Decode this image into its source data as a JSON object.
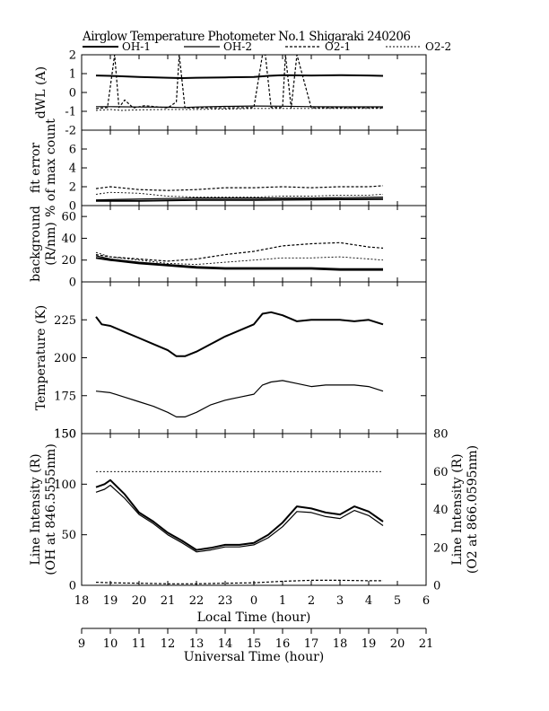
{
  "chart_data": {
    "type": "line",
    "title": "Airglow Temperature Photometer No.1  Shigaraki  240206",
    "legend": [
      "OH-1",
      "OH-2",
      "O2-1",
      "O2-2"
    ],
    "legend_placement": "top",
    "x_local": {
      "label": "Local Time (hour)",
      "ticks": [
        "18",
        "19",
        "20",
        "21",
        "22",
        "23",
        "0",
        "1",
        "2",
        "3",
        "4",
        "5",
        "6"
      ]
    },
    "x_universal": {
      "label": "Universal Time (hour)",
      "ticks": [
        "9",
        "10",
        "11",
        "12",
        "13",
        "14",
        "15",
        "16",
        "17",
        "18",
        "19",
        "20",
        "21"
      ]
    },
    "x_range_ut": [
      9,
      21
    ],
    "panels": [
      {
        "id": "dwl",
        "ylabel": [
          "dWL (A)"
        ],
        "ylim": [
          -2,
          2
        ],
        "yticks": [
          "-2",
          "-1",
          "0",
          "1",
          "2"
        ],
        "series": [
          {
            "name": "OH-1",
            "x": [
              9.5,
              10,
              11,
              12,
              12.5,
              13,
              14,
              15,
              15.5,
              16,
              17,
              18,
              19,
              19.5
            ],
            "y": [
              0.9,
              0.88,
              0.82,
              0.78,
              0.76,
              0.78,
              0.8,
              0.82,
              0.88,
              0.92,
              0.9,
              0.92,
              0.9,
              0.88
            ]
          },
          {
            "name": "OH-2",
            "x": [
              9.5,
              10,
              11,
              12,
              12.5,
              13,
              14,
              15,
              16,
              17,
              18,
              19,
              19.5
            ],
            "y": [
              -0.75,
              -0.75,
              -0.77,
              -0.78,
              -0.8,
              -0.77,
              -0.74,
              -0.72,
              -0.73,
              -0.75,
              -0.76,
              -0.76,
              -0.76
            ]
          },
          {
            "name": "O2-1",
            "x": [
              9.5,
              9.9,
              10.15,
              10.3,
              10.5,
              10.8,
              11.2,
              12,
              12.3,
              12.4,
              12.6,
              13,
              14,
              15,
              15.3,
              15.4,
              15.6,
              16,
              16.1,
              16.3,
              16.5,
              17,
              18,
              19,
              19.5
            ],
            "y": [
              -0.85,
              -0.8,
              2.0,
              -0.8,
              -0.4,
              -0.82,
              -0.7,
              -0.82,
              -0.5,
              2.0,
              -0.82,
              -0.82,
              -0.82,
              -0.8,
              2.0,
              2.0,
              -0.8,
              -0.8,
              2.0,
              -0.82,
              2.0,
              -0.82,
              -0.82,
              -0.82,
              -0.82
            ]
          },
          {
            "name": "O2-2",
            "x": [
              9.5,
              10,
              10.4,
              11,
              12,
              13,
              14,
              15,
              16,
              17,
              18,
              19,
              19.5
            ],
            "y": [
              -0.95,
              -0.9,
              -0.95,
              -0.92,
              -0.9,
              -0.9,
              -0.88,
              -0.85,
              -0.85,
              -0.85,
              -0.85,
              -0.85,
              -0.85
            ]
          }
        ]
      },
      {
        "id": "fit",
        "ylabel": [
          "fit error",
          "% of max count"
        ],
        "ylim": [
          0,
          8
        ],
        "yticks": [
          "0",
          "2",
          "4",
          "6"
        ],
        "series": [
          {
            "name": "OH-1",
            "x": [
              9.5,
              11,
              13,
              15,
              17,
              19.5
            ],
            "y": [
              0.5,
              0.5,
              0.6,
              0.6,
              0.65,
              0.7
            ]
          },
          {
            "name": "OH-2",
            "x": [
              9.5,
              11,
              13,
              15,
              17,
              19.5
            ],
            "y": [
              0.6,
              0.7,
              0.8,
              0.8,
              0.8,
              0.9
            ]
          },
          {
            "name": "O2-1",
            "x": [
              9.5,
              10,
              11,
              12,
              13,
              14,
              15,
              16,
              17,
              18,
              19,
              19.5
            ],
            "y": [
              1.8,
              2.0,
              1.7,
              1.6,
              1.7,
              1.9,
              1.9,
              2.0,
              1.9,
              2.0,
              2.0,
              2.1
            ]
          },
          {
            "name": "O2-2",
            "x": [
              9.5,
              10,
              11,
              12,
              13,
              14,
              15,
              16,
              17,
              18,
              19,
              19.5
            ],
            "y": [
              1.2,
              1.4,
              1.3,
              1.0,
              0.9,
              0.9,
              0.9,
              1.0,
              1.0,
              1.1,
              1.1,
              1.2
            ]
          }
        ]
      },
      {
        "id": "background",
        "ylabel": [
          "background",
          "(R/nm)"
        ],
        "ylim": [
          0,
          70
        ],
        "yticks": [
          "0",
          "20",
          "40",
          "60"
        ],
        "series": [
          {
            "name": "OH-1",
            "x": [
              9.5,
              10,
              11,
              12,
              13,
              14,
              15,
              16,
              17,
              18,
              19,
              19.5
            ],
            "y": [
              22,
              20,
              17,
              15,
              13,
              12,
              12,
              12,
              12,
              11,
              11,
              11
            ]
          },
          {
            "name": "OH-2",
            "x": [
              9.5,
              10,
              11,
              12,
              13,
              14,
              15,
              16,
              17,
              18,
              19,
              19.5
            ],
            "y": [
              24,
              21,
              18,
              16,
              14,
              13,
              13,
              13,
              13,
              12,
              12,
              12
            ]
          },
          {
            "name": "O2-1",
            "x": [
              9.5,
              10,
              11,
              12,
              13,
              14,
              15,
              16,
              17,
              18,
              19,
              19.5
            ],
            "y": [
              25,
              23,
              21,
              19,
              21,
              25,
              28,
              33,
              35,
              36,
              32,
              31
            ]
          },
          {
            "name": "O2-2",
            "x": [
              9.5,
              10,
              11,
              12,
              13,
              14,
              15,
              16,
              17,
              18,
              19,
              19.5
            ],
            "y": [
              27,
              23,
              20,
              17,
              16,
              18,
              20,
              22,
              22,
              23,
              21,
              20
            ]
          }
        ]
      },
      {
        "id": "temperature",
        "ylabel": [
          "Temperature (K)"
        ],
        "ylim": [
          150,
          250
        ],
        "yticks": [
          "150",
          "175",
          "200",
          "225"
        ],
        "series": [
          {
            "name": "OH-1",
            "x": [
              9.5,
              9.7,
              10,
              10.5,
              11,
              11.5,
              12,
              12.3,
              12.6,
              13,
              13.5,
              14,
              14.5,
              15,
              15.3,
              15.6,
              16,
              16.5,
              17,
              17.5,
              18,
              18.5,
              19,
              19.5
            ],
            "y": [
              227,
              222,
              221,
              217,
              213,
              209,
              205,
              201,
              201,
              204,
              209,
              214,
              218,
              222,
              229,
              230,
              228,
              224,
              225,
              225,
              225,
              224,
              225,
              222
            ]
          },
          {
            "name": "OH-2",
            "x": [
              9.5,
              10,
              10.5,
              11,
              11.5,
              12,
              12.3,
              12.6,
              13,
              13.5,
              14,
              14.5,
              15,
              15.3,
              15.6,
              16,
              16.5,
              17,
              17.5,
              18,
              18.5,
              19,
              19.5
            ],
            "y": [
              178,
              177,
              174,
              171,
              168,
              164,
              161,
              161,
              164,
              169,
              172,
              174,
              176,
              182,
              184,
              185,
              183,
              181,
              182,
              182,
              182,
              181,
              178
            ]
          }
        ]
      },
      {
        "id": "intensity",
        "ylabel": [
          "Line Intensity (R)",
          "(OH at 846.5555nm)"
        ],
        "ylabel_right": [
          "Line Intensity (R)",
          "(O2 at 866.0595nm)"
        ],
        "ylim": [
          0,
          150
        ],
        "ylim_right": [
          0,
          80
        ],
        "yticks": [
          "0",
          "50",
          "100",
          "150"
        ],
        "yticks_right": [
          "0",
          "20",
          "40",
          "60",
          "80"
        ],
        "series": [
          {
            "name": "OH-1",
            "x": [
              9.5,
              9.8,
              10,
              10.5,
              11,
              11.5,
              12,
              12.5,
              13,
              13.5,
              14,
              14.5,
              15,
              15.5,
              16,
              16.5,
              17,
              17.5,
              18,
              18.5,
              19,
              19.5
            ],
            "y": [
              97,
              100,
              104,
              90,
              72,
              63,
              52,
              44,
              35,
              37,
              40,
              40,
              42,
              50,
              62,
              78,
              76,
              72,
              70,
              78,
              73,
              63
            ]
          },
          {
            "name": "OH-2",
            "x": [
              9.5,
              9.8,
              10,
              10.5,
              11,
              11.5,
              12,
              12.5,
              13,
              13.5,
              14,
              14.5,
              15,
              15.5,
              16,
              16.5,
              17,
              17.5,
              18,
              18.5,
              19,
              19.5
            ],
            "y": [
              92,
              95,
              99,
              86,
              70,
              61,
              50,
              42,
              33,
              35,
              38,
              38,
              40,
              47,
              58,
              73,
              72,
              68,
              66,
              74,
              69,
              59
            ]
          },
          {
            "name": "O2-1",
            "x": [
              9.5,
              10,
              11,
              12,
              13,
              14,
              15,
              16,
              17,
              18,
              19,
              19.5
            ],
            "y": [
              3,
              2.5,
              2,
              1.5,
              1.5,
              2,
              2.5,
              4,
              5,
              5,
              4.5,
              4.5
            ]
          },
          {
            "name": "O2-2",
            "x": [
              9.5,
              19.5
            ],
            "y": [
              60,
              60
            ],
            "axis": "right"
          }
        ]
      }
    ]
  }
}
